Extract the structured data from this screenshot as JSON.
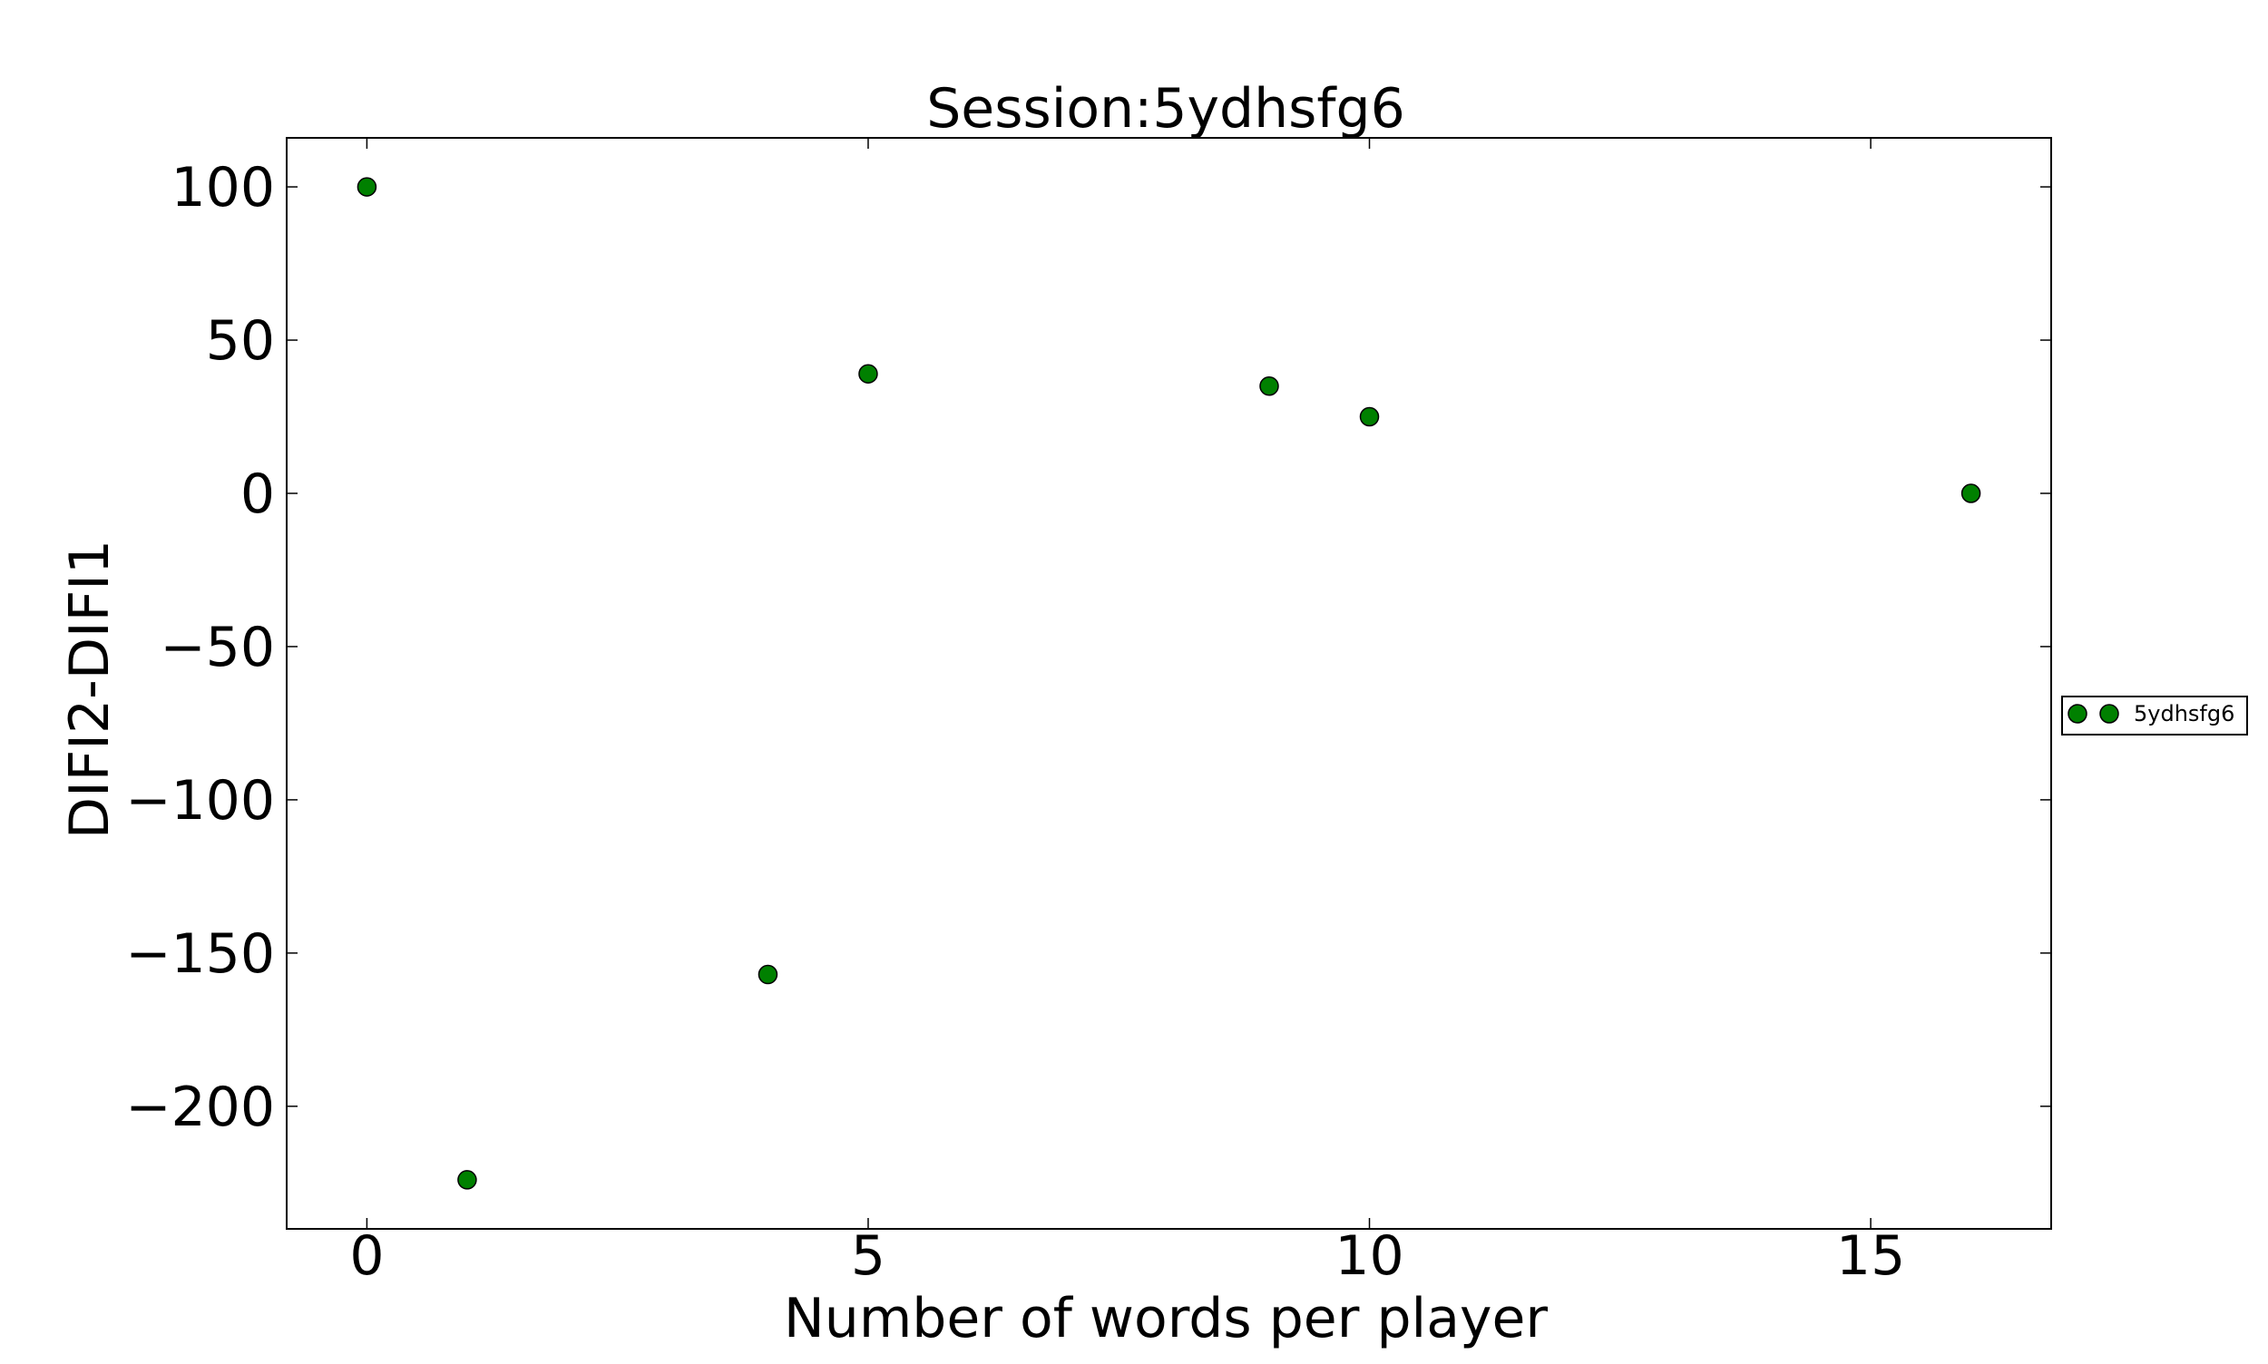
{
  "chart_data": {
    "type": "scatter",
    "title": "Session:5ydhsfg6",
    "xlabel": "Number of words per player",
    "ylabel": "DIFI2-DIFI1",
    "xlim": [
      -0.8,
      16.8
    ],
    "ylim": [
      -240,
      116
    ],
    "x_ticks": [
      0,
      5,
      10,
      15
    ],
    "y_ticks": [
      100,
      50,
      0,
      -50,
      -100,
      -150,
      -200
    ],
    "x_tick_labels": [
      "0",
      "5",
      "10",
      "15"
    ],
    "y_tick_labels": [
      "100",
      "50",
      "0",
      "−50",
      "−100",
      "−150",
      "−200"
    ],
    "grid": false,
    "legend_position": "right",
    "series": [
      {
        "name": "5ydhsfg6",
        "color": "#008000",
        "marker": "circle",
        "points": [
          {
            "x": 0,
            "y": 100
          },
          {
            "x": 1,
            "y": -224
          },
          {
            "x": 4,
            "y": -157
          },
          {
            "x": 5,
            "y": 39
          },
          {
            "x": 9,
            "y": 35
          },
          {
            "x": 10,
            "y": 25
          },
          {
            "x": 16,
            "y": 0
          }
        ]
      }
    ]
  }
}
